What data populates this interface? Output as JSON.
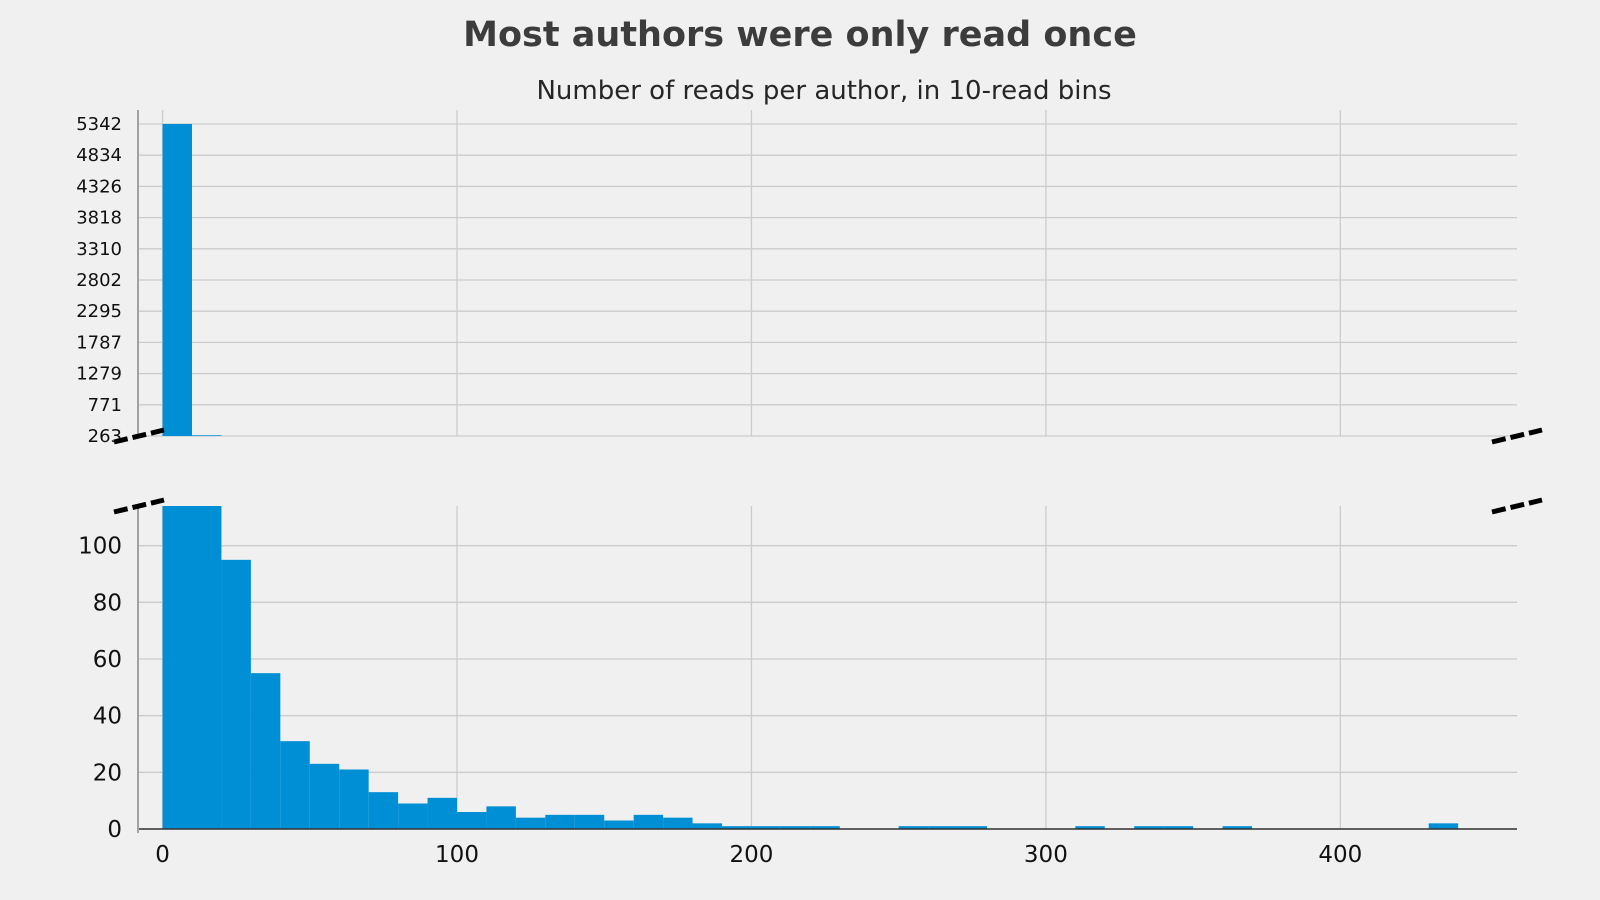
{
  "chart_data": {
    "type": "bar",
    "title": "Most authors were only read once",
    "subtitle": "Number of reads per author, in 10-read bins",
    "xlabel": "",
    "ylabel": "",
    "bin_width": 10,
    "x": [
      0,
      10,
      20,
      30,
      40,
      50,
      60,
      70,
      80,
      90,
      100,
      110,
      120,
      130,
      140,
      150,
      160,
      170,
      180,
      190,
      200,
      210,
      220,
      230,
      240,
      250,
      260,
      270,
      280,
      290,
      300,
      310,
      320,
      330,
      340,
      350,
      360,
      370,
      380,
      390,
      400,
      410,
      420,
      430
    ],
    "values": [
      5342,
      275,
      95,
      55,
      31,
      23,
      21,
      13,
      9,
      11,
      6,
      8,
      4,
      5,
      5,
      3,
      5,
      4,
      2,
      1,
      1,
      1,
      1,
      0,
      0,
      1,
      1,
      1,
      0,
      0,
      0,
      1,
      0,
      1,
      1,
      0,
      1,
      0,
      0,
      0,
      0,
      0,
      0,
      2
    ],
    "xlim": [
      -8,
      460
    ],
    "xticks": [
      "0",
      "100",
      "200",
      "300",
      "400"
    ],
    "xtick_values": [
      0,
      100,
      200,
      300,
      400
    ],
    "broken_y_axis": true,
    "top_panel": {
      "ylim": [
        263,
        5342
      ],
      "yticks": [
        "263",
        "771",
        "1279",
        "1787",
        "2295",
        "2802",
        "3310",
        "3818",
        "4326",
        "4834",
        "5342"
      ],
      "ytick_values": [
        263,
        771,
        1279,
        1787,
        2295,
        2802,
        3310,
        3818,
        4326,
        4834,
        5342
      ]
    },
    "bottom_panel": {
      "ylim": [
        0,
        114
      ],
      "yticks": [
        "0",
        "20",
        "40",
        "60",
        "80",
        "100"
      ],
      "ytick_values": [
        0,
        20,
        40,
        60,
        80,
        100
      ]
    },
    "grid": true,
    "legend": "none",
    "colors": {
      "bar": "#008fd5",
      "background": "#f0f0f0",
      "grid": "#cbcbcb",
      "title": "#3c3c3c"
    }
  }
}
